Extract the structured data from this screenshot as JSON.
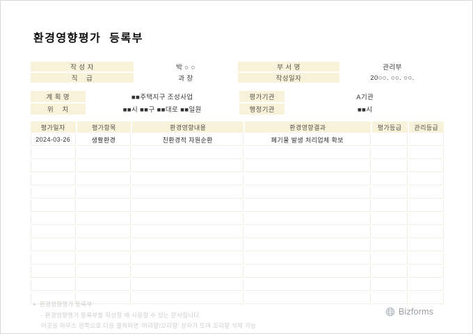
{
  "page": {
    "title": "환경영향평가 등록부"
  },
  "info_table": {
    "rows": [
      {
        "label_left": "작 성 자",
        "value_left": "박 ○ ○",
        "label_right": "부 서 명",
        "value_right": "관리부"
      },
      {
        "label_left": "직    급",
        "value_left": "과 장",
        "label_right": "작성일자",
        "value_right": "20○○. ○○. ○○."
      }
    ]
  },
  "plan_table": {
    "rows": [
      {
        "label_left": "계 획 명",
        "value_left": "■■주택지구 조성사업",
        "label_right": "평가기관",
        "value_right": "A기관"
      },
      {
        "label_left": "위    치",
        "value_left": "■■시 ■■구 ■■대로 ■■일원",
        "label_right": "행정기관",
        "value_right": "■■시"
      }
    ]
  },
  "main_table": {
    "headers": [
      "평가일자",
      "평가항목",
      "환경영향내용",
      "환경영향결과",
      "평가등급",
      "관리등급"
    ],
    "row": [
      "2024-03-26",
      "생활환경",
      "친환경적 자원순환",
      "폐기물 발생 처리업체 확보",
      "",
      ""
    ],
    "empty_row_count": 12
  },
  "footer": {
    "bullet": "▸",
    "note_title": "환경영향평가 등록부",
    "line1": "- 환경영향평가 등록부를 작성할 때 사용할 수 있는 문서입니다.",
    "line2": "이곳을 마우스 왼쪽으로 더블 클릭하면 '머리말/꼬리말' 상자가 뜨며 꼬리말 삭제 가능",
    "brand": "Bizforms"
  },
  "colors": {
    "label_bg": "#f9f2da",
    "grid_line": "#f0ede3",
    "page_border": "#d8d8d8",
    "footer_text": "#cdcdcb",
    "brand_text": "#999fa7"
  }
}
